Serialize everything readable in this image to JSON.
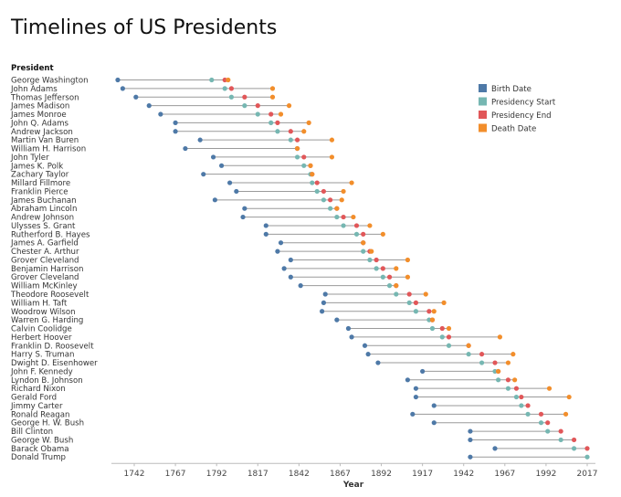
{
  "chart_data": {
    "type": "dot-timeline",
    "title": "Timelines of US Presidents",
    "row_header": "President",
    "xlabel": "Year",
    "xlim": [
      1730,
      2020
    ],
    "xticks": [
      1742,
      1767,
      1792,
      1817,
      1842,
      1867,
      1892,
      1917,
      1942,
      1967,
      1992,
      2017
    ],
    "legend": {
      "position": "right",
      "items": [
        {
          "key": "birth",
          "label": "Birth Date",
          "color": "#4e79a7"
        },
        {
          "key": "start",
          "label": "Presidency Start",
          "color": "#76b7b2"
        },
        {
          "key": "end",
          "label": "Presidency End",
          "color": "#e15759"
        },
        {
          "key": "death",
          "label": "Death Date",
          "color": "#f28e2b"
        }
      ]
    },
    "presidents": [
      {
        "name": "George Washington",
        "birth": 1732,
        "start": 1789,
        "end": 1797,
        "death": 1799
      },
      {
        "name": "John Adams",
        "birth": 1735,
        "start": 1797,
        "end": 1801,
        "death": 1826
      },
      {
        "name": "Thomas Jefferson",
        "birth": 1743,
        "start": 1801,
        "end": 1809,
        "death": 1826
      },
      {
        "name": "James Madison",
        "birth": 1751,
        "start": 1809,
        "end": 1817,
        "death": 1836
      },
      {
        "name": "James Monroe",
        "birth": 1758,
        "start": 1817,
        "end": 1825,
        "death": 1831
      },
      {
        "name": "John Q. Adams",
        "birth": 1767,
        "start": 1825,
        "end": 1829,
        "death": 1848
      },
      {
        "name": "Andrew Jackson",
        "birth": 1767,
        "start": 1829,
        "end": 1837,
        "death": 1845
      },
      {
        "name": "Martin Van Buren",
        "birth": 1782,
        "start": 1837,
        "end": 1841,
        "death": 1862
      },
      {
        "name": "William H. Harrison",
        "birth": 1773,
        "start": 1841,
        "end": 1841,
        "death": 1841
      },
      {
        "name": "John Tyler",
        "birth": 1790,
        "start": 1841,
        "end": 1845,
        "death": 1862
      },
      {
        "name": "James K. Polk",
        "birth": 1795,
        "start": 1845,
        "end": 1849,
        "death": 1849
      },
      {
        "name": "Zachary Taylor",
        "birth": 1784,
        "start": 1849,
        "end": 1850,
        "death": 1850
      },
      {
        "name": "Millard Fillmore",
        "birth": 1800,
        "start": 1850,
        "end": 1853,
        "death": 1874
      },
      {
        "name": "Franklin Pierce",
        "birth": 1804,
        "start": 1853,
        "end": 1857,
        "death": 1869
      },
      {
        "name": "James Buchanan",
        "birth": 1791,
        "start": 1857,
        "end": 1861,
        "death": 1868
      },
      {
        "name": "Abraham Lincoln",
        "birth": 1809,
        "start": 1861,
        "end": 1865,
        "death": 1865
      },
      {
        "name": "Andrew Johnson",
        "birth": 1808,
        "start": 1865,
        "end": 1869,
        "death": 1875
      },
      {
        "name": "Ulysses S. Grant",
        "birth": 1822,
        "start": 1869,
        "end": 1877,
        "death": 1885
      },
      {
        "name": "Rutherford B. Hayes",
        "birth": 1822,
        "start": 1877,
        "end": 1881,
        "death": 1893
      },
      {
        "name": "James A. Garfield",
        "birth": 1831,
        "start": 1881,
        "end": 1881,
        "death": 1881
      },
      {
        "name": "Chester A. Arthur",
        "birth": 1829,
        "start": 1881,
        "end": 1885,
        "death": 1886
      },
      {
        "name": "Grover Cleveland",
        "birth": 1837,
        "start": 1885,
        "end": 1889,
        "death": 1908
      },
      {
        "name": "Benjamin Harrison",
        "birth": 1833,
        "start": 1889,
        "end": 1893,
        "death": 1901
      },
      {
        "name": "Grover Cleveland",
        "birth": 1837,
        "start": 1893,
        "end": 1897,
        "death": 1908
      },
      {
        "name": "William McKinley",
        "birth": 1843,
        "start": 1897,
        "end": 1901,
        "death": 1901
      },
      {
        "name": "Theodore Roosevelt",
        "birth": 1858,
        "start": 1901,
        "end": 1909,
        "death": 1919
      },
      {
        "name": "William H. Taft",
        "birth": 1857,
        "start": 1909,
        "end": 1913,
        "death": 1930
      },
      {
        "name": "Woodrow Wilson",
        "birth": 1856,
        "start": 1913,
        "end": 1921,
        "death": 1924
      },
      {
        "name": "Warren G. Harding",
        "birth": 1865,
        "start": 1921,
        "end": 1923,
        "death": 1923
      },
      {
        "name": "Calvin Coolidge",
        "birth": 1872,
        "start": 1923,
        "end": 1929,
        "death": 1933
      },
      {
        "name": "Herbert Hoover",
        "birth": 1874,
        "start": 1929,
        "end": 1933,
        "death": 1964
      },
      {
        "name": "Franklin D. Roosevelt",
        "birth": 1882,
        "start": 1933,
        "end": 1945,
        "death": 1945
      },
      {
        "name": "Harry S. Truman",
        "birth": 1884,
        "start": 1945,
        "end": 1953,
        "death": 1972
      },
      {
        "name": "Dwight D. Eisenhower",
        "birth": 1890,
        "start": 1953,
        "end": 1961,
        "death": 1969
      },
      {
        "name": "John F. Kennedy",
        "birth": 1917,
        "start": 1961,
        "end": 1963,
        "death": 1963
      },
      {
        "name": "Lyndon B. Johnson",
        "birth": 1908,
        "start": 1963,
        "end": 1969,
        "death": 1973
      },
      {
        "name": "Richard Nixon",
        "birth": 1913,
        "start": 1969,
        "end": 1974,
        "death": 1994
      },
      {
        "name": "Gerald Ford",
        "birth": 1913,
        "start": 1974,
        "end": 1977,
        "death": 2006
      },
      {
        "name": "Jimmy Carter",
        "birth": 1924,
        "start": 1977,
        "end": 1981,
        "death": null
      },
      {
        "name": "Ronald Reagan",
        "birth": 1911,
        "start": 1981,
        "end": 1989,
        "death": 2004
      },
      {
        "name": "George H. W. Bush",
        "birth": 1924,
        "start": 1989,
        "end": 1993,
        "death": null
      },
      {
        "name": "Bill Clinton",
        "birth": 1946,
        "start": 1993,
        "end": 2001,
        "death": null
      },
      {
        "name": "George W. Bush",
        "birth": 1946,
        "start": 2001,
        "end": 2009,
        "death": null
      },
      {
        "name": "Barack Obama",
        "birth": 1961,
        "start": 2009,
        "end": 2017,
        "death": null
      },
      {
        "name": "Donald Trump",
        "birth": 1946,
        "start": 2017,
        "end": null,
        "death": null
      }
    ]
  }
}
